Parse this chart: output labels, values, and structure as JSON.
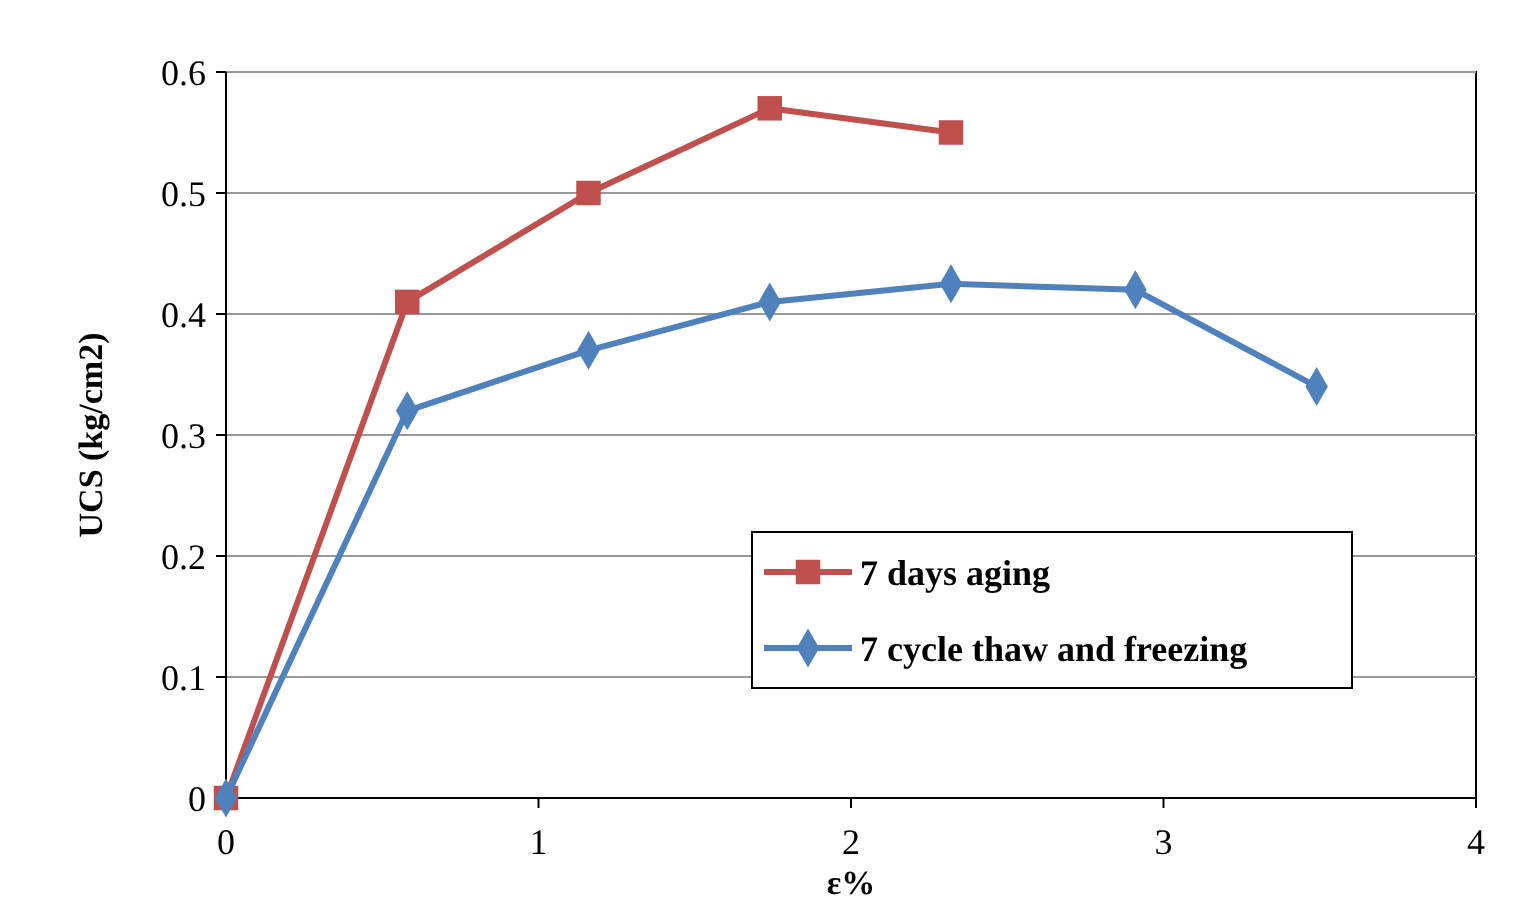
{
  "chart_data": {
    "type": "line",
    "xlabel": "ε%",
    "ylabel": "UCS (kg/cm2)",
    "xlim": [
      0,
      4
    ],
    "xticks": [
      0,
      1,
      2,
      3,
      4
    ],
    "ylim": [
      0,
      0.6
    ],
    "yticks": [
      0,
      0.1,
      0.2,
      0.3,
      0.4,
      0.5,
      0.6
    ],
    "grid": "y",
    "legend": "right",
    "line_style": "solid",
    "series": [
      {
        "name": "7 days aging",
        "color": "#c0504d",
        "marker": "square",
        "x": [
          0,
          0.58,
          1.16,
          1.74,
          2.32
        ],
        "values": [
          0,
          0.41,
          0.5,
          0.57,
          0.55
        ]
      },
      {
        "name": "7 cycle thaw and freezing",
        "color": "#4f81bd",
        "marker": "diamond",
        "x": [
          0,
          0.58,
          1.16,
          1.74,
          2.32,
          2.91,
          3.49
        ],
        "values": [
          0,
          0.32,
          0.37,
          0.41,
          0.425,
          0.42,
          0.34
        ]
      }
    ]
  }
}
